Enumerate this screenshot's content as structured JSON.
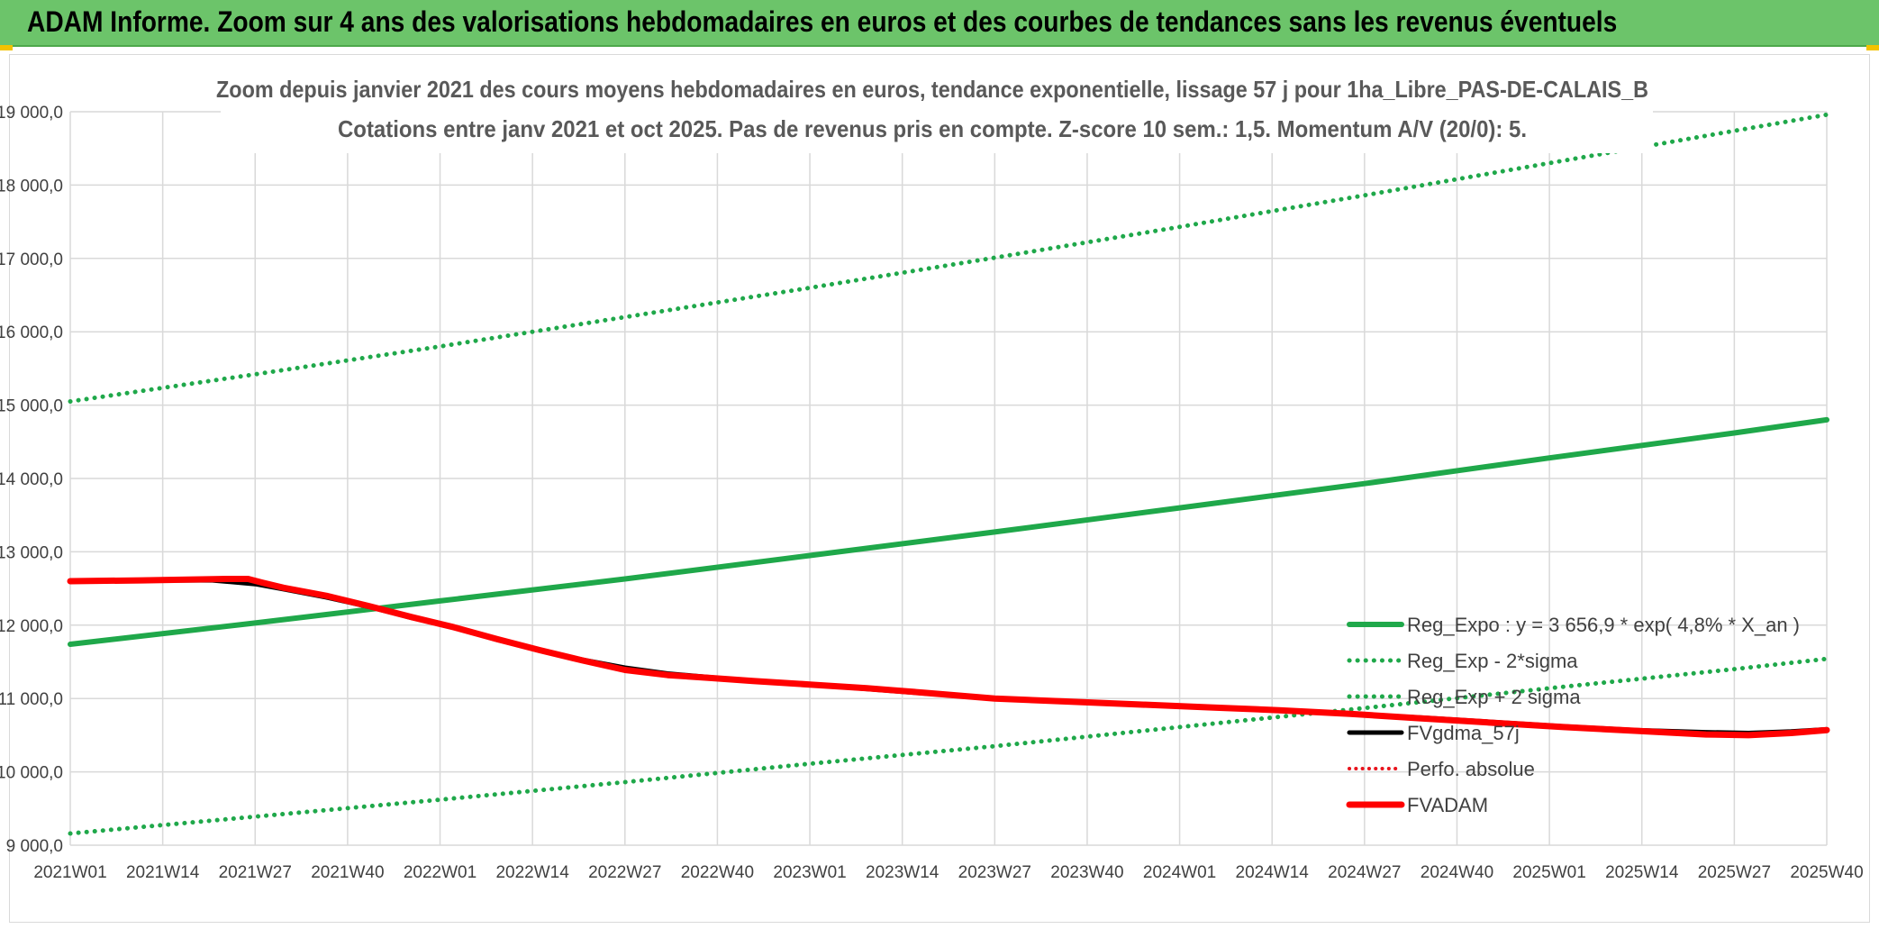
{
  "banner": {
    "title": "ADAM Informe. Zoom sur 4 ans des valorisations hebdomadaires en euros et des courbes de tendances sans les revenus éventuels"
  },
  "chart_data": {
    "type": "line",
    "title_line1": "Zoom depuis janvier 2021 des cours moyens hebdomadaires en euros, tendance exponentielle, lissage 57 j pour 1ha_Libre_PAS-DE-CALAIS_B",
    "title_line2": "Cotations entre janv 2021 et oct 2025. Pas de revenus pris en compte. Z-score 10 sem.: 1,5. Momentum A/V (20/0): 5.",
    "ylim": [
      9000,
      19000
    ],
    "y_ticks": [
      {
        "value": 9000,
        "label": "9 000,0"
      },
      {
        "value": 10000,
        "label": "10 000,0"
      },
      {
        "value": 11000,
        "label": "11 000,0"
      },
      {
        "value": 12000,
        "label": "12 000,0"
      },
      {
        "value": 13000,
        "label": "13 000,0"
      },
      {
        "value": 14000,
        "label": "14 000,0"
      },
      {
        "value": 15000,
        "label": "15 000,0"
      },
      {
        "value": 16000,
        "label": "16 000,0"
      },
      {
        "value": 17000,
        "label": "17 000,0"
      },
      {
        "value": 18000,
        "label": "18 000,0"
      },
      {
        "value": 19000,
        "label": "19 000,0"
      }
    ],
    "x_tick_labels": [
      "2021W01",
      "2021W14",
      "2021W27",
      "2021W40",
      "2022W01",
      "2022W14",
      "2022W27",
      "2022W40",
      "2023W01",
      "2023W14",
      "2023W27",
      "2023W40",
      "2024W01",
      "2024W14",
      "2024W27",
      "2024W40",
      "2025W01",
      "2025W14",
      "2025W27",
      "2025W40"
    ],
    "x_tick_index": [
      0,
      13,
      26,
      39,
      52,
      65,
      78,
      91,
      104,
      117,
      130,
      143,
      156,
      169,
      182,
      195,
      208,
      221,
      234,
      247
    ],
    "series": [
      {
        "name": "Reg_Expo : y = 3 656,9 * exp( 4,8% *  X_an )",
        "color": "#1fa84a",
        "style": "solid",
        "width": 6,
        "points": [
          [
            0,
            11740
          ],
          [
            26,
            12030
          ],
          [
            52,
            12330
          ],
          [
            78,
            12630
          ],
          [
            104,
            12950
          ],
          [
            130,
            13270
          ],
          [
            156,
            13600
          ],
          [
            182,
            13930
          ],
          [
            208,
            14280
          ],
          [
            234,
            14620
          ],
          [
            247,
            14800
          ]
        ]
      },
      {
        "name": "Reg_Exp - 2*sigma",
        "color": "#1fa84a",
        "style": "dotted",
        "width": 5,
        "points": [
          [
            0,
            9160
          ],
          [
            26,
            9390
          ],
          [
            52,
            9620
          ],
          [
            78,
            9860
          ],
          [
            104,
            10110
          ],
          [
            130,
            10350
          ],
          [
            156,
            10610
          ],
          [
            182,
            10870
          ],
          [
            208,
            11140
          ],
          [
            234,
            11400
          ],
          [
            247,
            11540
          ]
        ]
      },
      {
        "name": "Reg_Exp + 2 sigma",
        "color": "#1fa84a",
        "style": "dotted",
        "width": 5,
        "points": [
          [
            0,
            15050
          ],
          [
            26,
            15420
          ],
          [
            52,
            15800
          ],
          [
            78,
            16200
          ],
          [
            104,
            16600
          ],
          [
            130,
            17010
          ],
          [
            156,
            17430
          ],
          [
            182,
            17860
          ],
          [
            208,
            18300
          ],
          [
            234,
            18740
          ],
          [
            247,
            18960
          ]
        ]
      },
      {
        "name": "FVgdma_57j",
        "color": "#000000",
        "style": "solid",
        "width": 5,
        "points": [
          [
            0,
            12600
          ],
          [
            10,
            12610
          ],
          [
            20,
            12610
          ],
          [
            26,
            12560
          ],
          [
            30,
            12490
          ],
          [
            36,
            12380
          ],
          [
            42,
            12250
          ],
          [
            48,
            12100
          ],
          [
            54,
            11970
          ],
          [
            60,
            11800
          ],
          [
            66,
            11660
          ],
          [
            72,
            11530
          ],
          [
            78,
            11420
          ],
          [
            84,
            11340
          ],
          [
            90,
            11290
          ],
          [
            96,
            11240
          ],
          [
            104,
            11190
          ],
          [
            112,
            11130
          ],
          [
            120,
            11070
          ],
          [
            130,
            11000
          ],
          [
            140,
            10960
          ],
          [
            150,
            10920
          ],
          [
            160,
            10880
          ],
          [
            170,
            10840
          ],
          [
            180,
            10790
          ],
          [
            190,
            10740
          ],
          [
            200,
            10680
          ],
          [
            210,
            10620
          ],
          [
            220,
            10570
          ],
          [
            230,
            10540
          ],
          [
            236,
            10530
          ],
          [
            242,
            10550
          ],
          [
            247,
            10580
          ]
        ]
      },
      {
        "name": "Perfo. absolue",
        "color": "#e8141d",
        "style": "dotted",
        "width": 4,
        "points": []
      },
      {
        "name": "FVADAM",
        "color": "#ff0000",
        "style": "solid",
        "width": 7,
        "points": [
          [
            0,
            12600
          ],
          [
            10,
            12610
          ],
          [
            22,
            12630
          ],
          [
            25,
            12630
          ],
          [
            27,
            12580
          ],
          [
            30,
            12510
          ],
          [
            36,
            12400
          ],
          [
            42,
            12260
          ],
          [
            48,
            12110
          ],
          [
            54,
            11970
          ],
          [
            60,
            11810
          ],
          [
            66,
            11660
          ],
          [
            72,
            11520
          ],
          [
            78,
            11390
          ],
          [
            84,
            11320
          ],
          [
            90,
            11280
          ],
          [
            96,
            11240
          ],
          [
            104,
            11190
          ],
          [
            112,
            11140
          ],
          [
            120,
            11080
          ],
          [
            130,
            11000
          ],
          [
            140,
            10960
          ],
          [
            150,
            10920
          ],
          [
            160,
            10880
          ],
          [
            170,
            10840
          ],
          [
            180,
            10790
          ],
          [
            190,
            10730
          ],
          [
            200,
            10670
          ],
          [
            210,
            10610
          ],
          [
            220,
            10560
          ],
          [
            230,
            10510
          ],
          [
            236,
            10500
          ],
          [
            242,
            10530
          ],
          [
            247,
            10570
          ]
        ]
      }
    ],
    "legend_position": "bottom-right"
  }
}
